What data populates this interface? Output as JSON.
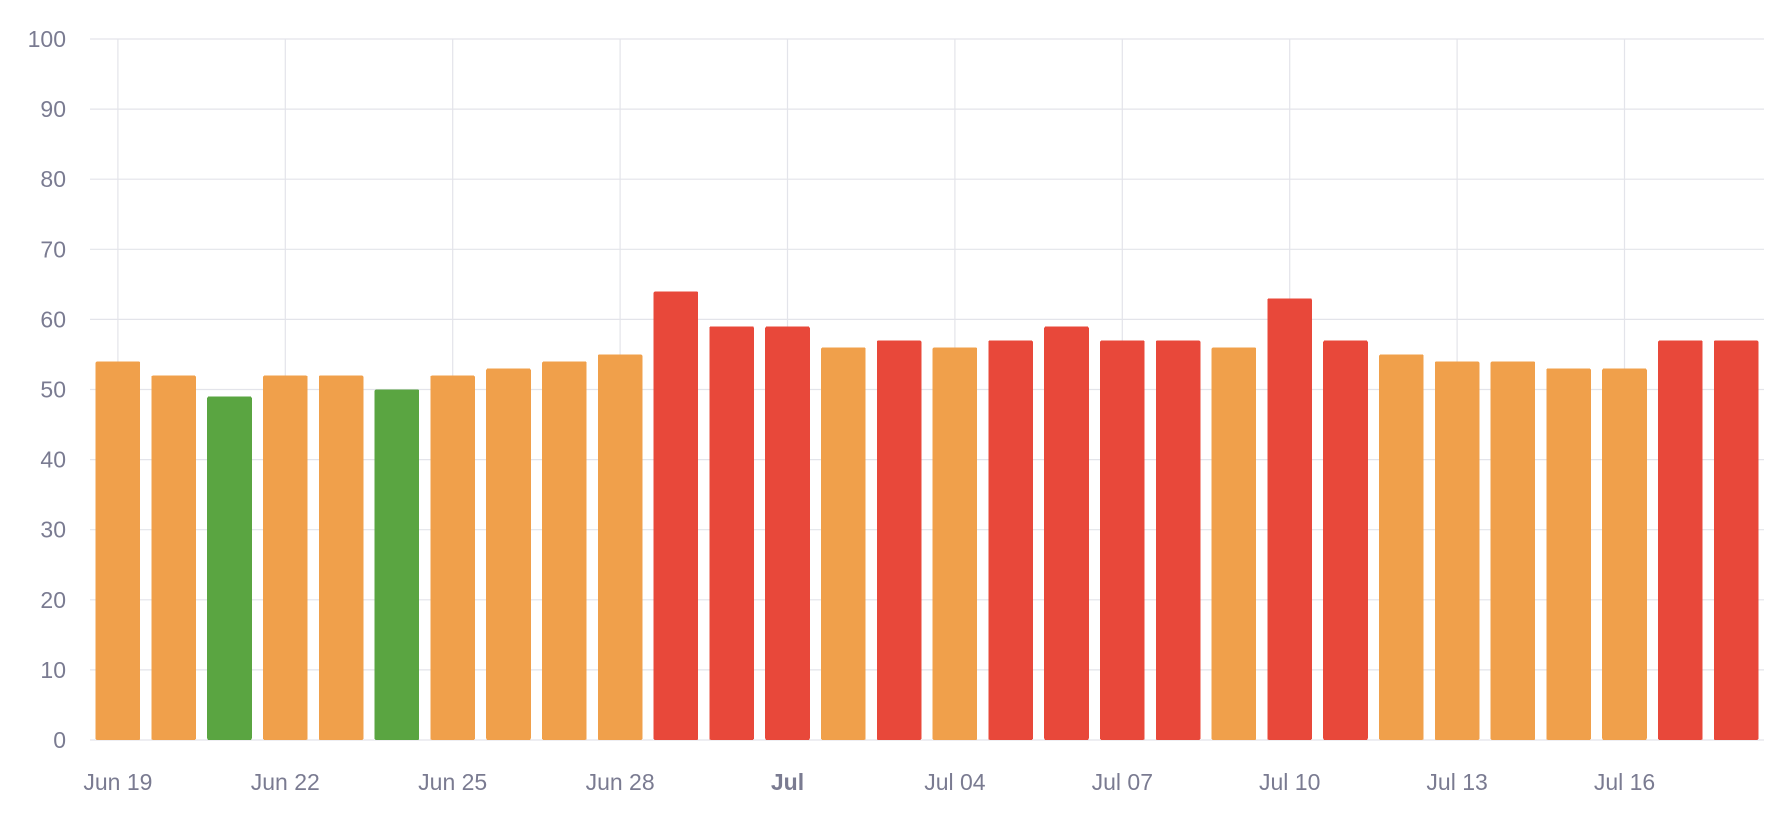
{
  "chart_data": {
    "type": "bar",
    "title": "",
    "xlabel": "",
    "ylabel": "",
    "ylim": [
      0,
      100
    ],
    "yticks": [
      "100",
      "90",
      "80",
      "70",
      "60",
      "50",
      "40",
      "30",
      "20",
      "10",
      "0"
    ],
    "x_tick_labels": [
      {
        "date": "2023-06-19",
        "label": "Jun 19",
        "bold": false
      },
      {
        "date": "2023-06-22",
        "label": "Jun 22",
        "bold": false
      },
      {
        "date": "2023-06-25",
        "label": "Jun 25",
        "bold": false
      },
      {
        "date": "2023-06-28",
        "label": "Jun 28",
        "bold": false
      },
      {
        "date": "2023-07-01",
        "label": "Jul",
        "bold": true
      },
      {
        "date": "2023-07-04",
        "label": "Jul 04",
        "bold": false
      },
      {
        "date": "2023-07-07",
        "label": "Jul 07",
        "bold": false
      },
      {
        "date": "2023-07-10",
        "label": "Jul 10",
        "bold": false
      },
      {
        "date": "2023-07-13",
        "label": "Jul 13",
        "bold": false
      },
      {
        "date": "2023-07-16",
        "label": "Jul 16",
        "bold": false
      }
    ],
    "categories": [
      "2023-06-19",
      "2023-06-20",
      "2023-06-21",
      "2023-06-22",
      "2023-06-23",
      "2023-06-24",
      "2023-06-25",
      "2023-06-26",
      "2023-06-27",
      "2023-06-28",
      "2023-06-29",
      "2023-06-30",
      "2023-07-01",
      "2023-07-02",
      "2023-07-03",
      "2023-07-04",
      "2023-07-05",
      "2023-07-06",
      "2023-07-07",
      "2023-07-08",
      "2023-07-09",
      "2023-07-10",
      "2023-07-11",
      "2023-07-12",
      "2023-07-13",
      "2023-07-14",
      "2023-07-15",
      "2023-07-16",
      "2023-07-17",
      "2023-07-18"
    ],
    "values": [
      54,
      52,
      49,
      52,
      52,
      50,
      52,
      53,
      54,
      55,
      64,
      59,
      59,
      56,
      57,
      56,
      57,
      59,
      57,
      57,
      56,
      63,
      57,
      55,
      54,
      54,
      53,
      53,
      57,
      57
    ],
    "bar_colors": [
      "orange",
      "orange",
      "green",
      "orange",
      "orange",
      "green",
      "orange",
      "orange",
      "orange",
      "orange",
      "red",
      "red",
      "red",
      "orange",
      "red",
      "orange",
      "red",
      "red",
      "red",
      "red",
      "orange",
      "red",
      "red",
      "orange",
      "orange",
      "orange",
      "orange",
      "orange",
      "red",
      "red"
    ],
    "palette": {
      "orange": "#f0a04b",
      "red": "#e8483a",
      "green": "#5aa541"
    },
    "grid": true,
    "legend": "none"
  }
}
